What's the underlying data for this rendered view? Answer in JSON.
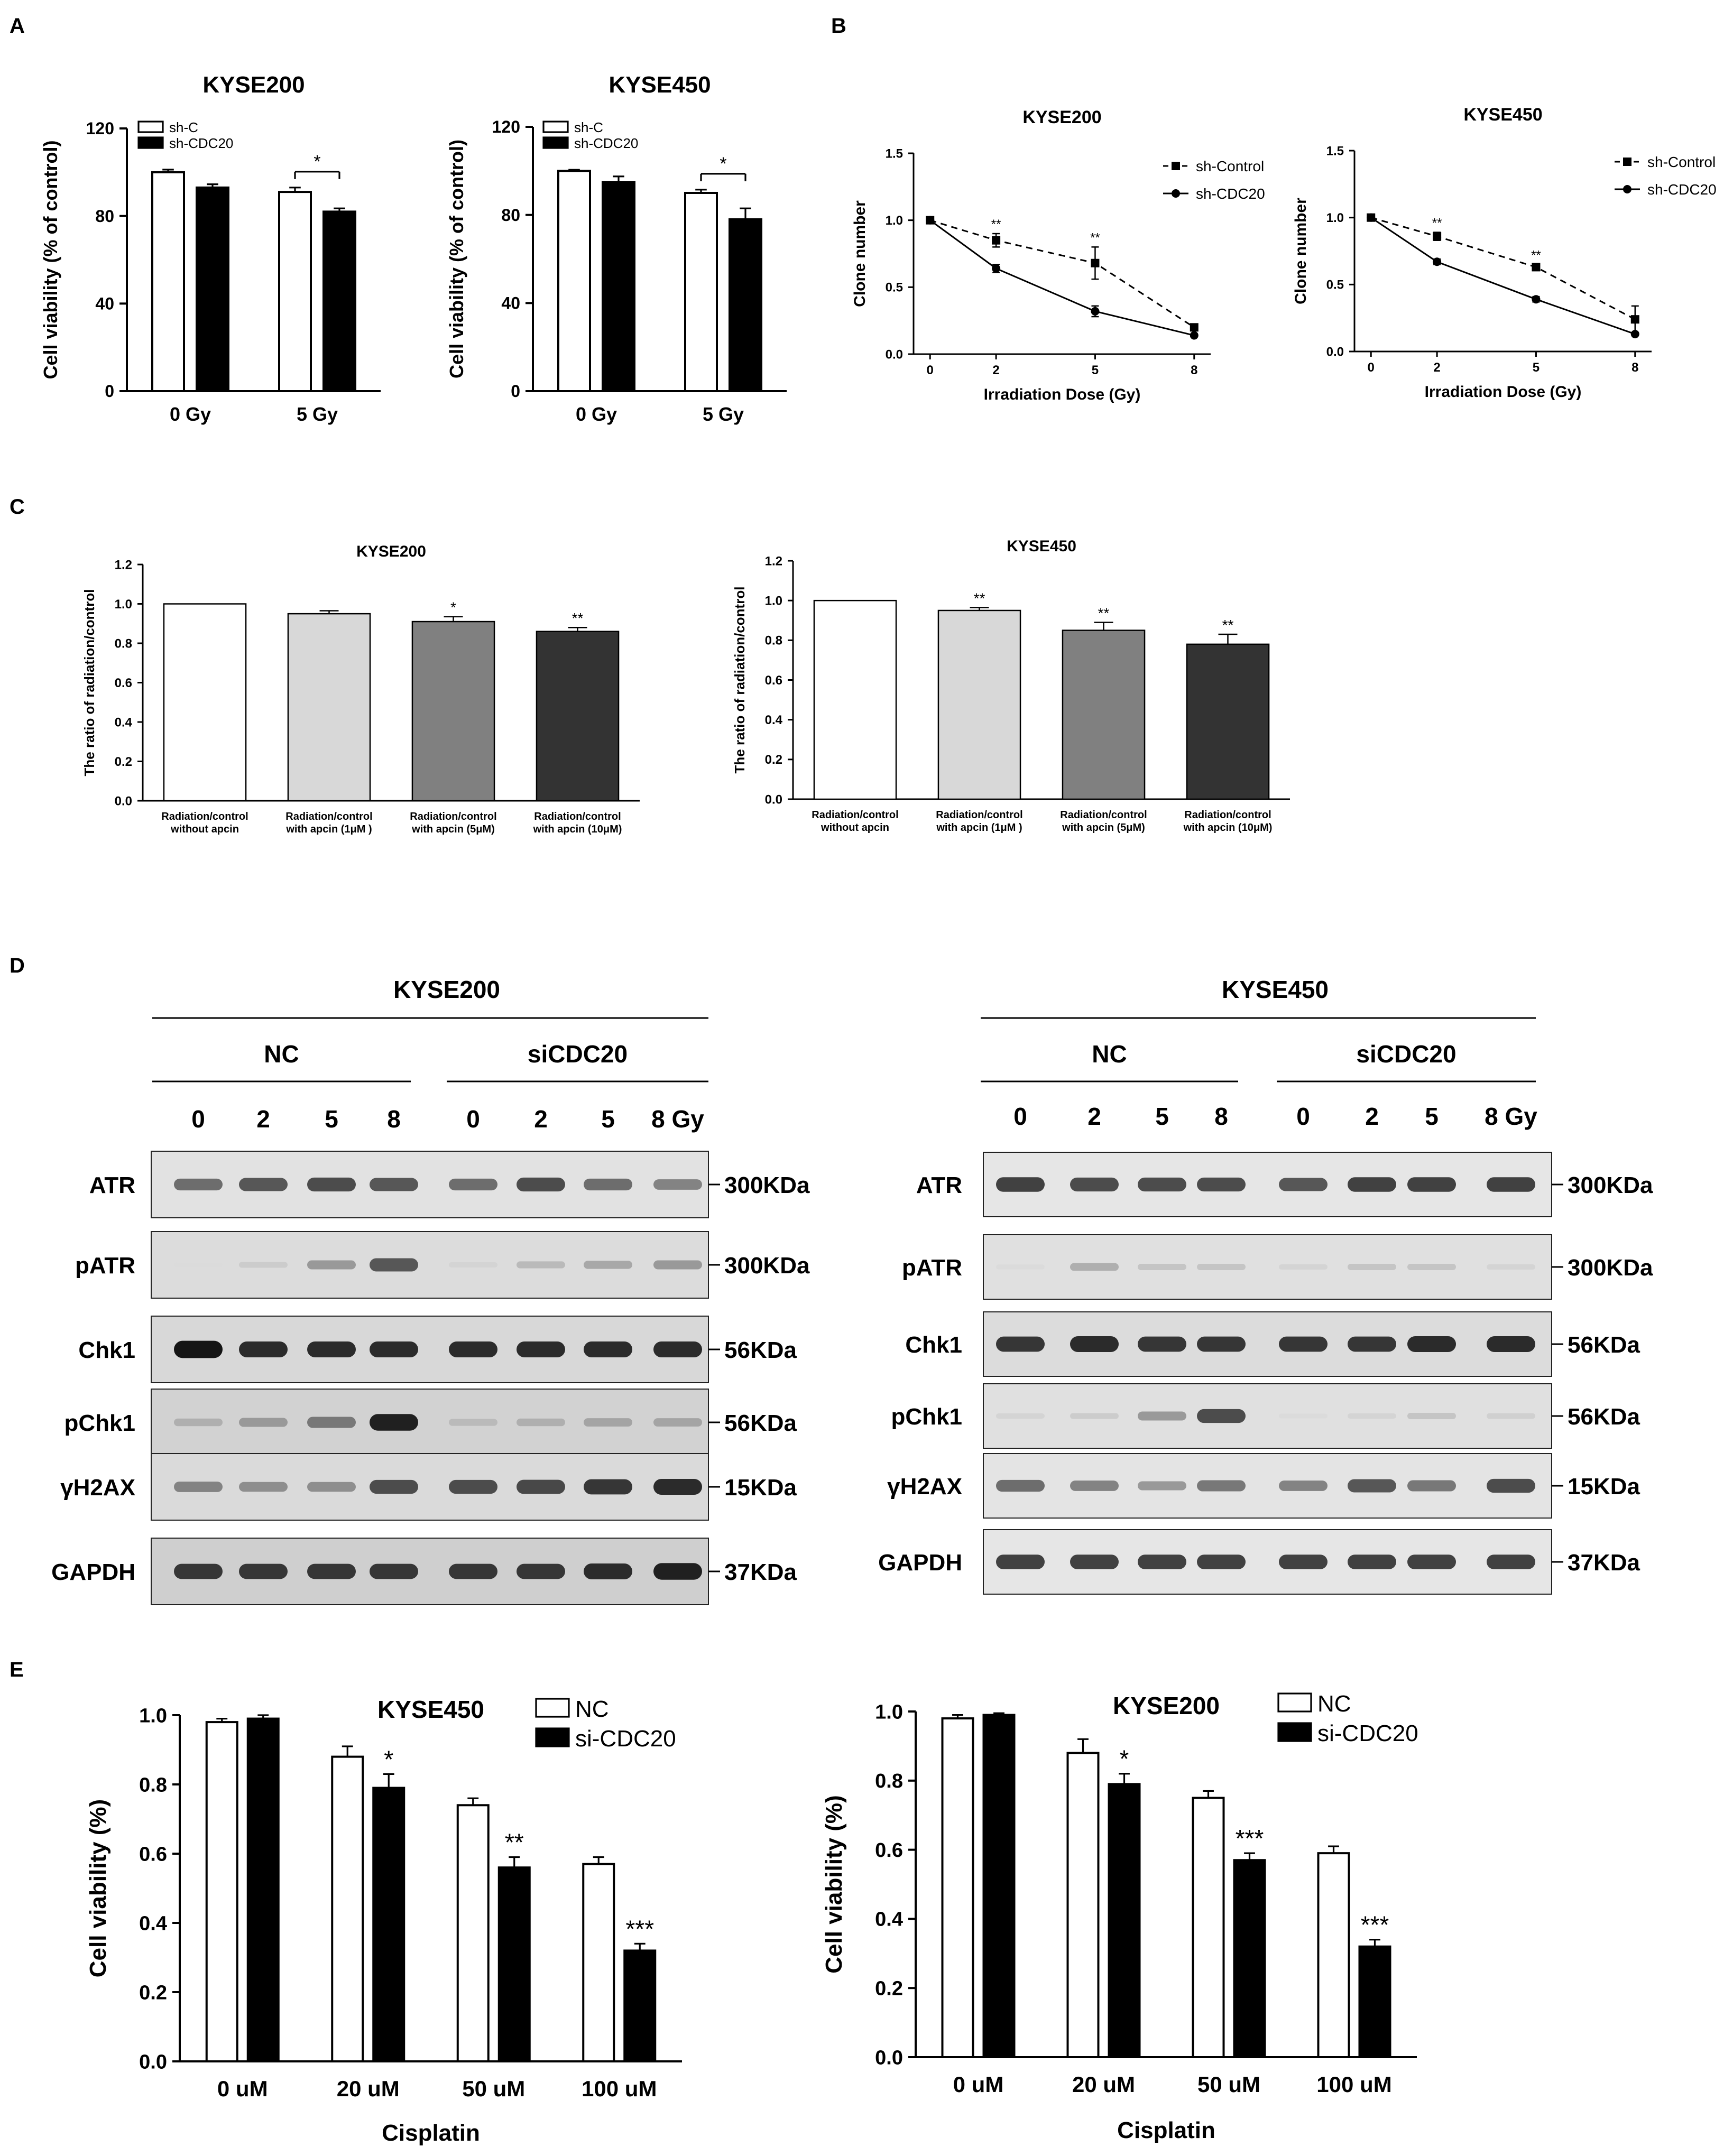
{
  "panels": {
    "A": {
      "label": "A",
      "charts": [
        {
          "type": "bar",
          "title": "KYSE200",
          "ylabel": "Cell viability (% of control)",
          "xlabel": "",
          "categories": [
            "0 Gy",
            "5 Gy"
          ],
          "ylim": [
            0,
            120
          ],
          "yticks": [
            0,
            40,
            80,
            120
          ],
          "series": [
            {
              "name": "sh-C",
              "values": [
                100,
                91
              ],
              "errors": [
                1.2,
                2
              ],
              "fill": "#ffffff"
            },
            {
              "name": "sh-CDC20",
              "values": [
                93,
                82
              ],
              "errors": [
                1.5,
                1.5
              ],
              "fill": "#000000"
            }
          ],
          "annotations": [
            {
              "category": 1,
              "text": "*",
              "bracket": true
            }
          ]
        },
        {
          "type": "bar",
          "title": "KYSE450",
          "ylabel": "Cell viability (% of control)",
          "xlabel": "",
          "categories": [
            "0 Gy",
            "5 Gy"
          ],
          "ylim": [
            0,
            120
          ],
          "yticks": [
            0,
            40,
            80,
            120
          ],
          "series": [
            {
              "name": "sh-C",
              "values": [
                100,
                90
              ],
              "errors": [
                0.5,
                1.5
              ],
              "fill": "#ffffff"
            },
            {
              "name": "sh-CDC20",
              "values": [
                95,
                78
              ],
              "errors": [
                2.5,
                5
              ],
              "fill": "#000000"
            }
          ],
          "annotations": [
            {
              "category": 1,
              "text": "*",
              "bracket": true
            }
          ]
        }
      ]
    },
    "B": {
      "label": "B",
      "charts": [
        {
          "type": "line",
          "title": "KYSE200",
          "xlabel": "Irradiation Dose (Gy)",
          "ylabel": "Clone number",
          "x": [
            0,
            2,
            5,
            8
          ],
          "ylim": [
            0,
            1.5
          ],
          "yticks": [
            "0.0",
            "0.5",
            "1.0",
            "1.5"
          ],
          "series": [
            {
              "name": "sh-Control",
              "values": [
                1.0,
                0.85,
                0.68,
                0.2
              ],
              "errors": [
                0,
                0.05,
                0.12,
                0.02
              ],
              "dash": true,
              "marker": "square"
            },
            {
              "name": "sh-CDC20",
              "values": [
                1.0,
                0.64,
                0.32,
                0.14
              ],
              "errors": [
                0,
                0.03,
                0.04,
                0.01
              ],
              "dash": false,
              "marker": "circle"
            }
          ],
          "annotations": [
            {
              "x": 2,
              "text": "**"
            },
            {
              "x": 5,
              "text": "**"
            }
          ]
        },
        {
          "type": "line",
          "title": "KYSE450",
          "xlabel": "Irradiation Dose (Gy)",
          "ylabel": "Clone number",
          "x": [
            0,
            2,
            5,
            8
          ],
          "ylim": [
            0,
            1.5
          ],
          "yticks": [
            "0.0",
            "0.5",
            "1.0",
            "1.5"
          ],
          "series": [
            {
              "name": "sh-Control",
              "values": [
                1.0,
                0.86,
                0.63,
                0.24
              ],
              "errors": [
                0,
                0.03,
                0.02,
                0.1
              ],
              "dash": true,
              "marker": "square"
            },
            {
              "name": "sh-CDC20",
              "values": [
                1.0,
                0.67,
                0.39,
                0.13
              ],
              "errors": [
                0,
                0.02,
                0.02,
                0.01
              ],
              "dash": false,
              "marker": "circle"
            }
          ],
          "annotations": [
            {
              "x": 2,
              "text": "**"
            },
            {
              "x": 5,
              "text": "**"
            }
          ]
        }
      ]
    },
    "C": {
      "label": "C",
      "charts": [
        {
          "type": "bar",
          "title": "KYSE200",
          "ylabel": "The ratio of radiation/control",
          "xlabel": "",
          "categories": [
            [
              "Radiation/control",
              "without apcin"
            ],
            [
              "Radiation/control",
              "with apcin (1μM )"
            ],
            [
              "Radiation/control",
              "with apcin (5μM)"
            ],
            [
              "Radiation/control",
              "with apcin (10μM)"
            ]
          ],
          "values": [
            1.0,
            0.95,
            0.91,
            0.86
          ],
          "errors": [
            0,
            0.015,
            0.025,
            0.02
          ],
          "fills": [
            "#ffffff",
            "#d8d8d8",
            "#808080",
            "#333333"
          ],
          "ylim": [
            0,
            1.2
          ],
          "yticks": [
            "0.0",
            "0.2",
            "0.4",
            "0.6",
            "0.8",
            "1.0",
            "1.2"
          ],
          "stars": [
            "",
            "",
            "*",
            "**"
          ]
        },
        {
          "type": "bar",
          "title": "KYSE450",
          "ylabel": "The ratio of radiation/control",
          "xlabel": "",
          "categories": [
            [
              "Radiation/control",
              "without apcin"
            ],
            [
              "Radiation/control",
              "with apcin (1μM )"
            ],
            [
              "Radiation/control",
              "with apcin (5μM)"
            ],
            [
              "Radiation/control",
              "with apcin (10μM)"
            ]
          ],
          "values": [
            1.0,
            0.95,
            0.85,
            0.78
          ],
          "errors": [
            0,
            0.015,
            0.04,
            0.05
          ],
          "fills": [
            "#ffffff",
            "#d8d8d8",
            "#808080",
            "#333333"
          ],
          "ylim": [
            0,
            1.2
          ],
          "yticks": [
            "0.0",
            "0.2",
            "0.4",
            "0.6",
            "0.8",
            "1.0",
            "1.2"
          ],
          "stars": [
            "",
            "**",
            "**",
            "**"
          ]
        }
      ]
    },
    "D": {
      "label": "D",
      "blots": [
        {
          "title": "KYSE200",
          "groups": [
            "NC",
            "siCDC20"
          ],
          "lanes": [
            "0",
            "2",
            "5",
            "8",
            "0",
            "2",
            "5",
            "8 Gy"
          ],
          "rows": [
            {
              "name": "ATR",
              "size": "300KDa",
              "intensity": [
                0.55,
                0.65,
                0.7,
                0.65,
                0.55,
                0.7,
                0.55,
                0.45
              ],
              "bg": "#e2e2e2"
            },
            {
              "name": "pATR",
              "size": "300KDa",
              "intensity": [
                0.05,
                0.12,
                0.35,
                0.65,
                0.08,
                0.2,
                0.28,
                0.35
              ],
              "bg": "#dcdcdc"
            },
            {
              "name": "Chk1",
              "size": "56KDa",
              "intensity": [
                0.95,
                0.85,
                0.85,
                0.85,
                0.85,
                0.85,
                0.85,
                0.85
              ],
              "bg": "#d8d8d8"
            },
            {
              "name": "pChk1",
              "size": "56KDa",
              "intensity": [
                0.25,
                0.35,
                0.5,
                0.9,
                0.2,
                0.25,
                0.3,
                0.3
              ],
              "bg": "#d2d2d2"
            },
            {
              "name": "γH2AX",
              "size": "15KDa",
              "intensity": [
                0.45,
                0.4,
                0.4,
                0.7,
                0.7,
                0.72,
                0.8,
                0.85
              ],
              "bg": "#dadada"
            },
            {
              "name": "GAPDH",
              "size": "37KDa",
              "intensity": [
                0.8,
                0.8,
                0.8,
                0.8,
                0.8,
                0.8,
                0.85,
                0.9
              ],
              "bg": "#cfcfcf"
            }
          ]
        },
        {
          "title": "KYSE450",
          "groups": [
            "NC",
            "siCDC20"
          ],
          "lanes": [
            "0",
            "2",
            "5",
            "8",
            "0",
            "2",
            "5",
            "8 Gy"
          ],
          "rows": [
            {
              "name": "ATR",
              "size": "300KDa",
              "intensity": [
                0.75,
                0.7,
                0.7,
                0.7,
                0.65,
                0.75,
                0.75,
                0.75
              ],
              "bg": "#e6e6e6"
            },
            {
              "name": "pATR",
              "size": "300KDa",
              "intensity": [
                0.05,
                0.25,
                0.15,
                0.15,
                0.08,
                0.15,
                0.15,
                0.08
              ],
              "bg": "#e0e0e0"
            },
            {
              "name": "Chk1",
              "size": "56KDa",
              "intensity": [
                0.8,
                0.85,
                0.8,
                0.8,
                0.8,
                0.8,
                0.85,
                0.85
              ],
              "bg": "#dcdcdc"
            },
            {
              "name": "pChk1",
              "size": "56KDa",
              "intensity": [
                0.08,
                0.12,
                0.35,
                0.7,
                0.05,
                0.08,
                0.15,
                0.1
              ],
              "bg": "#e0e0e0"
            },
            {
              "name": "γH2AX",
              "size": "15KDa",
              "intensity": [
                0.55,
                0.45,
                0.35,
                0.5,
                0.45,
                0.65,
                0.5,
                0.7
              ],
              "bg": "#e4e4e4"
            },
            {
              "name": "GAPDH",
              "size": "37KDa",
              "intensity": [
                0.75,
                0.75,
                0.75,
                0.75,
                0.75,
                0.75,
                0.75,
                0.75
              ],
              "bg": "#e6e6e6"
            }
          ]
        }
      ]
    },
    "E": {
      "label": "E",
      "charts": [
        {
          "type": "bar",
          "title": "KYSE450",
          "ylabel": "Cell viability (%)",
          "xlabel": "Cisplatin",
          "categories": [
            "0 uM",
            "20 uM",
            "50 uM",
            "100 uM"
          ],
          "ylim": [
            0,
            1.0
          ],
          "yticks": [
            "0.0",
            "0.2",
            "0.4",
            "0.6",
            "0.8",
            "1.0"
          ],
          "series": [
            {
              "name": "NC",
              "values": [
                0.98,
                0.88,
                0.74,
                0.57
              ],
              "errors": [
                0.01,
                0.03,
                0.02,
                0.02
              ],
              "fill": "#ffffff"
            },
            {
              "name": "si-CDC20",
              "values": [
                0.99,
                0.79,
                0.56,
                0.32
              ],
              "errors": [
                0.01,
                0.04,
                0.03,
                0.02
              ],
              "fill": "#000000"
            }
          ],
          "stars": [
            "",
            "*",
            "**",
            "***"
          ]
        },
        {
          "type": "bar",
          "title": "KYSE200",
          "ylabel": "Cell viability (%)",
          "xlabel": "Cisplatin",
          "categories": [
            "0 uM",
            "20 uM",
            "50 uM",
            "100 uM"
          ],
          "ylim": [
            0,
            1.0
          ],
          "yticks": [
            "0.0",
            "0.2",
            "0.4",
            "0.6",
            "0.8",
            "1.0"
          ],
          "series": [
            {
              "name": "NC",
              "values": [
                0.98,
                0.88,
                0.75,
                0.59
              ],
              "errors": [
                0.01,
                0.04,
                0.02,
                0.02
              ],
              "fill": "#ffffff"
            },
            {
              "name": "si-CDC20",
              "values": [
                0.99,
                0.79,
                0.57,
                0.32
              ],
              "errors": [
                0.005,
                0.03,
                0.02,
                0.02
              ],
              "fill": "#000000"
            }
          ],
          "stars": [
            "",
            "*",
            "***",
            "***"
          ]
        }
      ]
    }
  },
  "chart_data": [
    {
      "type": "bar",
      "panel": "A",
      "title": "KYSE200",
      "ylabel": "Cell viability (% of control)",
      "xlabel": "",
      "categories": [
        "0 Gy",
        "5 Gy"
      ],
      "ylim": [
        0,
        120
      ],
      "series": [
        {
          "name": "sh-C",
          "values": [
            100,
            91
          ]
        },
        {
          "name": "sh-CDC20",
          "values": [
            93,
            82
          ]
        }
      ]
    },
    {
      "type": "bar",
      "panel": "A",
      "title": "KYSE450",
      "ylabel": "Cell viability (% of control)",
      "xlabel": "",
      "categories": [
        "0 Gy",
        "5 Gy"
      ],
      "ylim": [
        0,
        120
      ],
      "series": [
        {
          "name": "sh-C",
          "values": [
            100,
            90
          ]
        },
        {
          "name": "sh-CDC20",
          "values": [
            95,
            78
          ]
        }
      ]
    },
    {
      "type": "line",
      "panel": "B",
      "title": "KYSE200",
      "xlabel": "Irradiation Dose (Gy)",
      "ylabel": "Clone number",
      "x": [
        0,
        2,
        5,
        8
      ],
      "ylim": [
        0,
        1.5
      ],
      "series": [
        {
          "name": "sh-Control",
          "values": [
            1.0,
            0.85,
            0.68,
            0.2
          ]
        },
        {
          "name": "sh-CDC20",
          "values": [
            1.0,
            0.64,
            0.32,
            0.14
          ]
        }
      ]
    },
    {
      "type": "line",
      "panel": "B",
      "title": "KYSE450",
      "xlabel": "Irradiation Dose (Gy)",
      "ylabel": "Clone number",
      "x": [
        0,
        2,
        5,
        8
      ],
      "ylim": [
        0,
        1.5
      ],
      "series": [
        {
          "name": "sh-Control",
          "values": [
            1.0,
            0.86,
            0.63,
            0.24
          ]
        },
        {
          "name": "sh-CDC20",
          "values": [
            1.0,
            0.67,
            0.39,
            0.13
          ]
        }
      ]
    },
    {
      "type": "bar",
      "panel": "C",
      "title": "KYSE200",
      "ylabel": "The ratio of radiation/control",
      "categories": [
        "Radiation/control without apcin",
        "Radiation/control with apcin (1μM )",
        "Radiation/control with apcin (5μM)",
        "Radiation/control with apcin (10μM)"
      ],
      "values": [
        1.0,
        0.95,
        0.91,
        0.86
      ],
      "ylim": [
        0,
        1.2
      ]
    },
    {
      "type": "bar",
      "panel": "C",
      "title": "KYSE450",
      "ylabel": "The ratio of radiation/control",
      "categories": [
        "Radiation/control without apcin",
        "Radiation/control with apcin (1μM )",
        "Radiation/control with apcin (5μM)",
        "Radiation/control with apcin (10μM)"
      ],
      "values": [
        1.0,
        0.95,
        0.85,
        0.78
      ],
      "ylim": [
        0,
        1.2
      ]
    },
    {
      "type": "bar",
      "panel": "E",
      "title": "KYSE450",
      "ylabel": "Cell viability (%)",
      "xlabel": "Cisplatin",
      "categories": [
        "0 uM",
        "20 uM",
        "50 uM",
        "100 uM"
      ],
      "ylim": [
        0,
        1.0
      ],
      "series": [
        {
          "name": "NC",
          "values": [
            0.98,
            0.88,
            0.74,
            0.57
          ]
        },
        {
          "name": "si-CDC20",
          "values": [
            0.99,
            0.79,
            0.56,
            0.32
          ]
        }
      ]
    },
    {
      "type": "bar",
      "panel": "E",
      "title": "KYSE200",
      "ylabel": "Cell viability (%)",
      "xlabel": "Cisplatin",
      "categories": [
        "0 uM",
        "20 uM",
        "50 uM",
        "100 uM"
      ],
      "ylim": [
        0,
        1.0
      ],
      "series": [
        {
          "name": "NC",
          "values": [
            0.98,
            0.88,
            0.75,
            0.59
          ]
        },
        {
          "name": "si-CDC20",
          "values": [
            0.99,
            0.79,
            0.57,
            0.32
          ]
        }
      ]
    }
  ]
}
